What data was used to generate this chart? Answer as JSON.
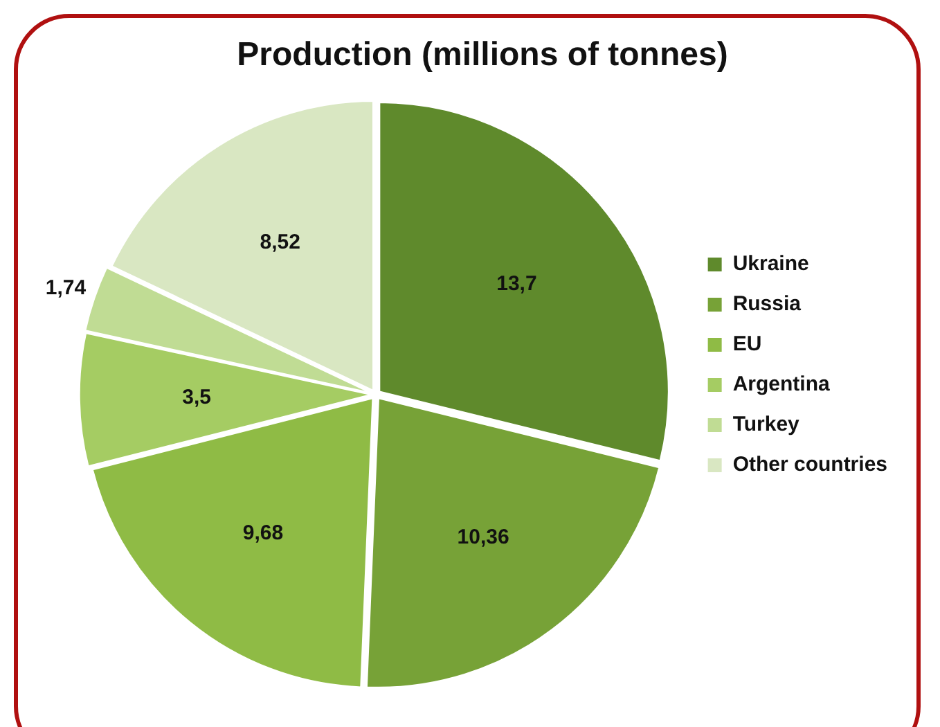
{
  "chart_data": {
    "type": "pie",
    "title": "Production (millions of tonnes)",
    "categories": [
      "Ukraine",
      "Russia",
      "EU",
      "Argentina",
      "Turkey",
      "Other countries"
    ],
    "values": [
      13.7,
      10.36,
      9.68,
      3.5,
      1.74,
      8.52
    ],
    "value_labels": [
      "13,7",
      "10,36",
      "9,68",
      "3,5",
      "1,74",
      "8,52"
    ],
    "colors": [
      "#5f8a2c",
      "#77a237",
      "#8fbb45",
      "#a5cc63",
      "#c0dc94",
      "#d9e7c2"
    ],
    "legend": "right"
  }
}
